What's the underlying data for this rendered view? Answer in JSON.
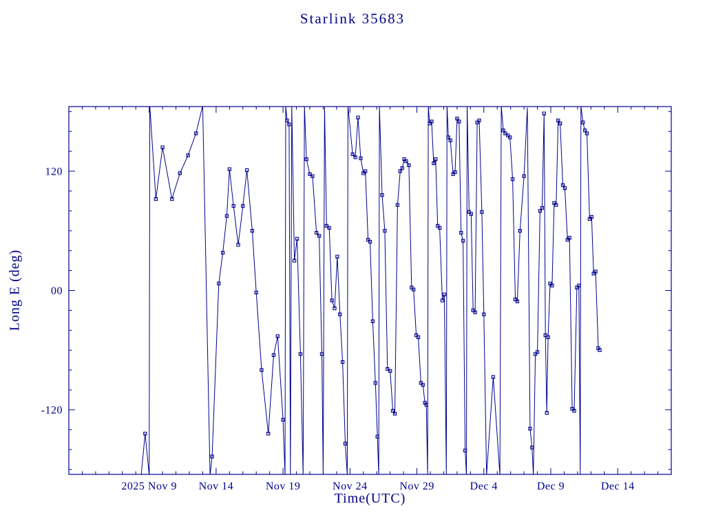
{
  "page": {
    "title": "Starlink 35683"
  },
  "colors": {
    "plot": "#00008b",
    "background": "#ffffff"
  },
  "chart_data": {
    "type": "line",
    "title": "Starlink 35683",
    "xlabel": "Time(UTC)",
    "ylabel": "Long E (deg)",
    "legend": null,
    "grid": false,
    "marker": "open-square",
    "marker_size": 4.2,
    "x_units": "day number (2025 Nov 1 = 1, Dec 4 = 34)",
    "xlim": [
      3,
      48
    ],
    "ylim": [
      -185,
      185
    ],
    "x_minor_step": 1,
    "y_minor_step": 20,
    "x_ticks": [
      {
        "day": 9,
        "label": "2025 Nov  9"
      },
      {
        "day": 14,
        "label": "Nov 14"
      },
      {
        "day": 19,
        "label": "Nov 19"
      },
      {
        "day": 24,
        "label": "Nov 24"
      },
      {
        "day": 29,
        "label": "Nov 29"
      },
      {
        "day": 34,
        "label": "Dec  4"
      },
      {
        "day": 39,
        "label": "Dec  9"
      },
      {
        "day": 44,
        "label": "Dec 14"
      }
    ],
    "y_ticks": [
      {
        "value": 120,
        "label": "120"
      },
      {
        "value": 0,
        "label": "00"
      },
      {
        "value": -120,
        "label": "-120"
      }
    ],
    "series": [
      {
        "name": "Long E (deg)",
        "points": [
          [
            8.4,
            -186
          ],
          [
            8.7,
            -144
          ],
          [
            9.0,
            -186
          ],
          [
            9.05,
            186
          ],
          [
            9.5,
            92
          ],
          [
            10.0,
            144
          ],
          [
            10.7,
            92
          ],
          [
            11.3,
            118
          ],
          [
            11.9,
            136
          ],
          [
            12.5,
            158
          ],
          [
            13.0,
            186
          ],
          [
            13.55,
            -186
          ],
          [
            13.7,
            -167
          ],
          [
            14.2,
            7
          ],
          [
            14.5,
            38
          ],
          [
            14.8,
            75
          ],
          [
            15.0,
            122
          ],
          [
            15.3,
            85
          ],
          [
            15.65,
            46
          ],
          [
            16.0,
            85
          ],
          [
            16.3,
            121
          ],
          [
            16.7,
            60
          ],
          [
            17.0,
            -2
          ],
          [
            17.4,
            -80
          ],
          [
            17.9,
            -144
          ],
          [
            18.3,
            -65
          ],
          [
            18.6,
            -46
          ],
          [
            19.0,
            -130
          ],
          [
            19.15,
            -186
          ],
          [
            19.2,
            186
          ],
          [
            19.3,
            171
          ],
          [
            19.45,
            167
          ],
          [
            19.55,
            -186
          ],
          [
            19.65,
            186
          ],
          [
            19.85,
            30
          ],
          [
            20.05,
            52
          ],
          [
            20.3,
            -64
          ],
          [
            20.5,
            -186
          ],
          [
            20.6,
            186
          ],
          [
            20.75,
            132
          ],
          [
            21.0,
            117
          ],
          [
            21.2,
            115
          ],
          [
            21.5,
            58
          ],
          [
            21.7,
            55
          ],
          [
            21.9,
            -64
          ],
          [
            22.0,
            -186
          ],
          [
            22.1,
            186
          ],
          [
            22.25,
            65
          ],
          [
            22.45,
            63
          ],
          [
            22.65,
            -10
          ],
          [
            22.85,
            -18
          ],
          [
            23.05,
            34
          ],
          [
            23.25,
            -24
          ],
          [
            23.45,
            -72
          ],
          [
            23.65,
            -154
          ],
          [
            23.8,
            -186
          ],
          [
            23.85,
            186
          ],
          [
            24.2,
            137
          ],
          [
            24.4,
            134
          ],
          [
            24.6,
            174
          ],
          [
            24.8,
            133
          ],
          [
            25.0,
            118
          ],
          [
            25.15,
            120
          ],
          [
            25.35,
            51
          ],
          [
            25.5,
            49
          ],
          [
            25.7,
            -31
          ],
          [
            25.9,
            -93
          ],
          [
            26.05,
            -147
          ],
          [
            26.15,
            -186
          ],
          [
            26.2,
            186
          ],
          [
            26.4,
            96
          ],
          [
            26.6,
            60
          ],
          [
            26.8,
            -79
          ],
          [
            27.0,
            -81
          ],
          [
            27.2,
            -121
          ],
          [
            27.35,
            -124
          ],
          [
            27.55,
            86
          ],
          [
            27.75,
            120
          ],
          [
            27.9,
            123
          ],
          [
            28.05,
            132
          ],
          [
            28.2,
            130
          ],
          [
            28.4,
            126
          ],
          [
            28.6,
            3
          ],
          [
            28.75,
            1
          ],
          [
            28.95,
            -45
          ],
          [
            29.1,
            -47
          ],
          [
            29.3,
            -93
          ],
          [
            29.45,
            -95
          ],
          [
            29.6,
            -113
          ],
          [
            29.7,
            -115
          ],
          [
            29.8,
            -186
          ],
          [
            29.85,
            186
          ],
          [
            29.95,
            168
          ],
          [
            30.1,
            170
          ],
          [
            30.25,
            128
          ],
          [
            30.4,
            132
          ],
          [
            30.55,
            65
          ],
          [
            30.7,
            63
          ],
          [
            30.9,
            -10
          ],
          [
            31.05,
            -4
          ],
          [
            31.2,
            -186
          ],
          [
            31.25,
            186
          ],
          [
            31.35,
            154
          ],
          [
            31.5,
            151
          ],
          [
            31.7,
            117
          ],
          [
            31.85,
            119
          ],
          [
            32.0,
            173
          ],
          [
            32.15,
            170
          ],
          [
            32.3,
            58
          ],
          [
            32.45,
            50
          ],
          [
            32.6,
            -161
          ],
          [
            32.7,
            -186
          ],
          [
            32.75,
            186
          ],
          [
            32.9,
            79
          ],
          [
            33.05,
            77
          ],
          [
            33.2,
            -20
          ],
          [
            33.35,
            -22
          ],
          [
            33.5,
            169
          ],
          [
            33.65,
            171
          ],
          [
            33.85,
            79
          ],
          [
            34.0,
            -24
          ],
          [
            34.2,
            -186
          ],
          [
            34.7,
            -87
          ],
          [
            35.2,
            -186
          ],
          [
            35.3,
            186
          ],
          [
            35.45,
            161
          ],
          [
            35.6,
            158
          ],
          [
            35.8,
            156
          ],
          [
            35.95,
            154
          ],
          [
            36.15,
            112
          ],
          [
            36.35,
            -9
          ],
          [
            36.5,
            -11
          ],
          [
            36.7,
            60
          ],
          [
            37.0,
            115
          ],
          [
            37.25,
            184
          ],
          [
            37.45,
            -139
          ],
          [
            37.6,
            -158
          ],
          [
            37.7,
            -186
          ],
          [
            37.85,
            -64
          ],
          [
            38.0,
            -62
          ],
          [
            38.2,
            80
          ],
          [
            38.35,
            83
          ],
          [
            38.5,
            178
          ],
          [
            38.6,
            -45
          ],
          [
            38.7,
            -123
          ],
          [
            38.8,
            -47
          ],
          [
            38.95,
            7
          ],
          [
            39.1,
            5
          ],
          [
            39.25,
            88
          ],
          [
            39.4,
            86
          ],
          [
            39.55,
            171
          ],
          [
            39.7,
            168
          ],
          [
            39.9,
            106
          ],
          [
            40.05,
            103
          ],
          [
            40.25,
            51
          ],
          [
            40.4,
            53
          ],
          [
            40.6,
            -119
          ],
          [
            40.75,
            -121
          ],
          [
            40.95,
            3
          ],
          [
            41.1,
            5
          ],
          [
            41.2,
            -186
          ],
          [
            41.25,
            186
          ],
          [
            41.4,
            169
          ],
          [
            41.55,
            161
          ],
          [
            41.7,
            158
          ],
          [
            41.9,
            72
          ],
          [
            42.05,
            74
          ],
          [
            42.2,
            17
          ],
          [
            42.35,
            19
          ],
          [
            42.55,
            -58
          ],
          [
            42.65,
            -60
          ]
        ]
      }
    ]
  }
}
